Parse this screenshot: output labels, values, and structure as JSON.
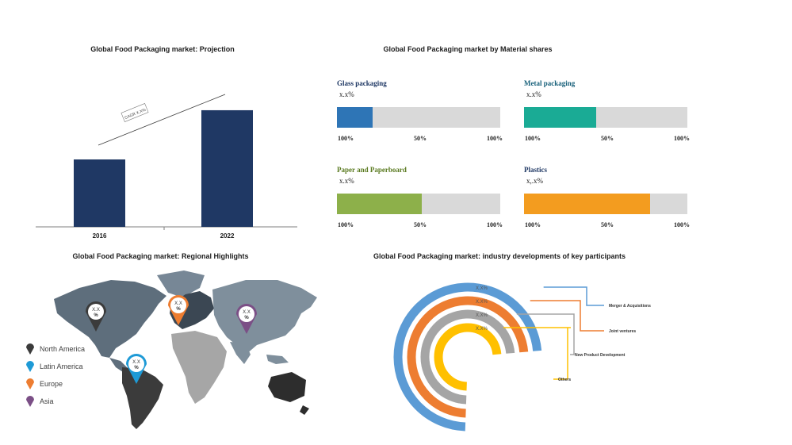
{
  "projection": {
    "title": "Global Food Packaging market: Projection",
    "cagr_label": "CAGR X.X%",
    "colors": {
      "bar": "#1f3864"
    }
  },
  "materials": {
    "title": "Global Food Packaging market by Material shares",
    "items": [
      {
        "name": "Glass packaging",
        "value_text": "x.x%",
        "fill": 0.22,
        "color": "#2e75b6",
        "name_color": "#1f3864"
      },
      {
        "name": "Metal packaging",
        "value_text": "x.x%",
        "fill": 0.44,
        "color": "#1aab95",
        "name_color": "#17607a"
      },
      {
        "name": "Paper and Paperboard",
        "value_text": "x.x%",
        "fill": 0.52,
        "color": "#8db04a",
        "name_color": "#5a7a20"
      },
      {
        "name": "Plastics",
        "value_text": "x,.x%",
        "fill": 0.77,
        "color": "#f39c1f",
        "name_color": "#1f3864"
      }
    ],
    "ticks": [
      "100%",
      "50%",
      "100%"
    ],
    "track_color": "#d9d9d9"
  },
  "regional": {
    "title": "Global Food Packaging market: Regional Highlights",
    "pin_top": "X.X",
    "pin_bottom": "%",
    "legend": [
      {
        "name": "North America",
        "color": "#3b3b3b"
      },
      {
        "name": "Latin America",
        "color": "#1e9ad6"
      },
      {
        "name": "Europe",
        "color": "#ed7d31"
      },
      {
        "name": "Asia",
        "color": "#7b4f86"
      }
    ]
  },
  "developments": {
    "title": "Global Food Packaging market: industry developments of key participants",
    "arcs": [
      {
        "value_text": "X.X%",
        "label": "Merger & Acquisitions",
        "color": "#5b9bd5"
      },
      {
        "value_text": "X.X%",
        "label": "Joint ventures",
        "color": "#ed7d31"
      },
      {
        "value_text": "X.X%",
        "label": "New Product Development",
        "color": "#a5a5a5"
      },
      {
        "value_text": "X.X%",
        "label": "Others",
        "color": "#ffc000"
      }
    ]
  },
  "chart_data": [
    {
      "type": "bar",
      "title": "Global Food Packaging market: Projection",
      "categories": [
        "2016",
        "2022"
      ],
      "values": [
        100,
        173
      ],
      "annotation": "CAGR X.X%",
      "xlabel": "",
      "ylabel": "",
      "ylim": [
        0,
        200
      ],
      "grid": false
    },
    {
      "type": "bar",
      "title": "Global Food Packaging market by Material shares",
      "categories": [
        "Glass packaging",
        "Metal packaging",
        "Paper and Paperboard",
        "Plastics"
      ],
      "values": [
        22,
        44,
        52,
        77
      ],
      "value_labels": [
        "x.x%",
        "x.x%",
        "x.x%",
        "x,.x%"
      ],
      "tick_labels": [
        "100%",
        "50%",
        "100%"
      ]
    },
    {
      "type": "pie",
      "title": "Global Food Packaging market: industry developments of key participants",
      "categories": [
        "Merger & Acquisitions",
        "Joint ventures",
        "New Product Development",
        "Others"
      ],
      "value_labels": [
        "X.X%",
        "X.X%",
        "X.X%",
        "X.X%"
      ]
    }
  ]
}
